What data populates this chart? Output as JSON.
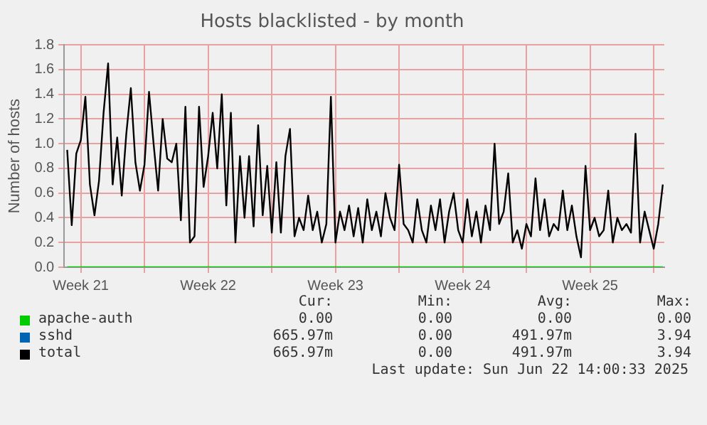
{
  "chart_data": {
    "type": "line",
    "title": "Hosts blacklisted - by month",
    "ylabel": "Number of hosts",
    "x": [
      "2025-05-20T18:00",
      "2025-05-21T00:00",
      "2025-05-21T06:00",
      "2025-05-21T12:00",
      "2025-05-21T18:00",
      "2025-05-22T00:00",
      "2025-05-22T06:00",
      "2025-05-22T12:00",
      "2025-05-22T18:00",
      "2025-05-23T00:00",
      "2025-05-23T06:00",
      "2025-05-23T12:00",
      "2025-05-23T18:00",
      "2025-05-24T00:00",
      "2025-05-24T06:00",
      "2025-05-24T12:00",
      "2025-05-24T18:00",
      "2025-05-25T00:00",
      "2025-05-25T06:00",
      "2025-05-25T12:00",
      "2025-05-25T18:00",
      "2025-05-26T00:00",
      "2025-05-26T06:00",
      "2025-05-26T12:00",
      "2025-05-26T18:00",
      "2025-05-27T00:00",
      "2025-05-27T06:00",
      "2025-05-27T12:00",
      "2025-05-27T18:00",
      "2025-05-28T00:00",
      "2025-05-28T06:00",
      "2025-05-28T12:00",
      "2025-05-28T18:00",
      "2025-05-29T00:00",
      "2025-05-29T06:00",
      "2025-05-29T12:00",
      "2025-05-29T18:00",
      "2025-05-30T00:00",
      "2025-05-30T06:00",
      "2025-05-30T12:00",
      "2025-05-30T18:00",
      "2025-05-31T00:00",
      "2025-05-31T06:00",
      "2025-05-31T12:00",
      "2025-05-31T18:00",
      "2025-06-01T00:00",
      "2025-06-01T06:00",
      "2025-06-01T12:00",
      "2025-06-01T18:00",
      "2025-06-02T00:00",
      "2025-06-02T06:00",
      "2025-06-02T12:00",
      "2025-06-02T18:00",
      "2025-06-03T00:00",
      "2025-06-03T06:00",
      "2025-06-03T12:00",
      "2025-06-03T18:00",
      "2025-06-04T00:00",
      "2025-06-04T06:00",
      "2025-06-04T12:00",
      "2025-06-04T18:00",
      "2025-06-05T00:00",
      "2025-06-05T06:00",
      "2025-06-05T12:00",
      "2025-06-05T18:00",
      "2025-06-06T00:00",
      "2025-06-06T06:00",
      "2025-06-06T12:00",
      "2025-06-06T18:00",
      "2025-06-07T00:00",
      "2025-06-07T06:00",
      "2025-06-07T12:00",
      "2025-06-07T18:00",
      "2025-06-08T00:00",
      "2025-06-08T06:00",
      "2025-06-08T12:00",
      "2025-06-08T18:00",
      "2025-06-09T00:00",
      "2025-06-09T06:00",
      "2025-06-09T12:00",
      "2025-06-09T18:00",
      "2025-06-10T00:00",
      "2025-06-10T06:00",
      "2025-06-10T12:00",
      "2025-06-10T18:00",
      "2025-06-11T00:00",
      "2025-06-11T06:00",
      "2025-06-11T12:00",
      "2025-06-11T18:00",
      "2025-06-12T00:00",
      "2025-06-12T06:00",
      "2025-06-12T12:00",
      "2025-06-12T18:00",
      "2025-06-13T00:00",
      "2025-06-13T06:00",
      "2025-06-13T12:00",
      "2025-06-13T18:00",
      "2025-06-14T00:00",
      "2025-06-14T06:00",
      "2025-06-14T12:00",
      "2025-06-14T18:00",
      "2025-06-15T00:00",
      "2025-06-15T06:00",
      "2025-06-15T12:00",
      "2025-06-15T18:00",
      "2025-06-16T00:00",
      "2025-06-16T06:00",
      "2025-06-16T12:00",
      "2025-06-16T18:00",
      "2025-06-17T00:00",
      "2025-06-17T06:00",
      "2025-06-17T12:00",
      "2025-06-17T18:00",
      "2025-06-18T00:00",
      "2025-06-18T06:00",
      "2025-06-18T12:00",
      "2025-06-18T18:00",
      "2025-06-19T00:00",
      "2025-06-19T06:00",
      "2025-06-19T12:00",
      "2025-06-19T18:00",
      "2025-06-20T00:00",
      "2025-06-20T06:00",
      "2025-06-20T12:00",
      "2025-06-20T18:00",
      "2025-06-21T00:00",
      "2025-06-21T06:00",
      "2025-06-21T12:00",
      "2025-06-21T18:00",
      "2025-06-22T00:00",
      "2025-06-22T06:00",
      "2025-06-22T12:00"
    ],
    "series": [
      {
        "name": "apache-auth",
        "color": "#00cc00",
        "values": [
          0,
          0,
          0,
          0,
          0,
          0,
          0,
          0,
          0,
          0,
          0,
          0,
          0,
          0,
          0,
          0,
          0,
          0,
          0,
          0,
          0,
          0,
          0,
          0,
          0,
          0,
          0,
          0,
          0,
          0,
          0,
          0,
          0,
          0,
          0,
          0,
          0,
          0,
          0,
          0,
          0,
          0,
          0,
          0,
          0,
          0,
          0,
          0,
          0,
          0,
          0,
          0,
          0,
          0,
          0,
          0,
          0,
          0,
          0,
          0,
          0,
          0,
          0,
          0,
          0,
          0,
          0,
          0,
          0,
          0,
          0,
          0,
          0,
          0,
          0,
          0,
          0,
          0,
          0,
          0,
          0,
          0,
          0,
          0,
          0,
          0,
          0,
          0,
          0,
          0,
          0,
          0,
          0,
          0,
          0,
          0,
          0,
          0,
          0,
          0,
          0,
          0,
          0,
          0,
          0,
          0,
          0,
          0,
          0,
          0,
          0,
          0,
          0,
          0,
          0,
          0,
          0,
          0,
          0,
          0,
          0,
          0,
          0,
          0,
          0,
          0,
          0,
          0,
          0,
          0,
          0,
          0
        ]
      },
      {
        "name": "sshd",
        "color": "#0066b3",
        "values": [
          null,
          null,
          null,
          null,
          null,
          null,
          null,
          null,
          null,
          null,
          null,
          null,
          null,
          null,
          null,
          null,
          null,
          null,
          null,
          null,
          null,
          null,
          null,
          null,
          null,
          null,
          null,
          null,
          null,
          null,
          null,
          null,
          null,
          null,
          null,
          null,
          null,
          null,
          null,
          null,
          null,
          null,
          null,
          null,
          null,
          null,
          null,
          null,
          null,
          null,
          null,
          null,
          null,
          null,
          null,
          null,
          null,
          null,
          null,
          null,
          null,
          null,
          null,
          null,
          null,
          null,
          null,
          null,
          null,
          null,
          null,
          null,
          null,
          null,
          null,
          null,
          null,
          null,
          null,
          null,
          null,
          null,
          null,
          null,
          null,
          null,
          null,
          null,
          null,
          null,
          null,
          null,
          null,
          null,
          null,
          null,
          null,
          null,
          null,
          null,
          null,
          null,
          null,
          null,
          null,
          null,
          null,
          null,
          null,
          null,
          null,
          null,
          null,
          null,
          null,
          null,
          null,
          null,
          null,
          null,
          null,
          null,
          null,
          null,
          null,
          null,
          null,
          null,
          null,
          null,
          null,
          null
        ]
      },
      {
        "name": "total",
        "color": "#000000",
        "values": [
          0.95,
          0.34,
          0.92,
          1.03,
          1.38,
          0.67,
          0.42,
          0.7,
          1.25,
          1.65,
          0.67,
          1.05,
          0.58,
          1.08,
          1.45,
          0.85,
          0.62,
          0.83,
          1.42,
          1.0,
          0.62,
          1.2,
          0.88,
          0.85,
          1.0,
          0.38,
          1.3,
          0.2,
          0.25,
          1.3,
          0.65,
          0.9,
          1.25,
          0.8,
          1.4,
          0.5,
          1.25,
          0.2,
          0.9,
          0.4,
          0.9,
          0.33,
          1.15,
          0.42,
          0.82,
          0.28,
          0.85,
          0.28,
          0.9,
          1.12,
          0.25,
          0.4,
          0.3,
          0.58,
          0.3,
          0.45,
          0.2,
          0.35,
          1.38,
          0.2,
          0.45,
          0.3,
          0.5,
          0.25,
          0.48,
          0.2,
          0.55,
          0.3,
          0.45,
          0.25,
          0.6,
          0.4,
          0.3,
          0.83,
          0.35,
          0.3,
          0.2,
          0.55,
          0.3,
          0.2,
          0.5,
          0.3,
          0.55,
          0.2,
          0.45,
          0.6,
          0.3,
          0.2,
          0.55,
          0.25,
          0.45,
          0.2,
          0.5,
          0.3,
          1.0,
          0.35,
          0.45,
          0.76,
          0.2,
          0.3,
          0.15,
          0.35,
          0.25,
          0.72,
          0.3,
          0.55,
          0.25,
          0.35,
          0.3,
          0.62,
          0.3,
          0.5,
          0.25,
          0.08,
          0.82,
          0.3,
          0.4,
          0.25,
          0.3,
          0.62,
          0.2,
          0.4,
          0.3,
          0.35,
          0.28,
          1.08,
          0.2,
          0.45,
          0.3,
          0.15,
          0.35,
          0.67
        ]
      }
    ],
    "xlim": [
      "2025-05-20T14:00",
      "2025-06-22T14:00"
    ],
    "xticks": [
      {
        "value": "2025-05-21T12:00",
        "label": "Week 21"
      },
      {
        "value": "2025-05-25T00:00",
        "label": null
      },
      {
        "value": "2025-05-28T12:00",
        "label": "Week 22"
      },
      {
        "value": "2025-06-01T00:00",
        "label": null
      },
      {
        "value": "2025-06-04T12:00",
        "label": "Week 23"
      },
      {
        "value": "2025-06-08T00:00",
        "label": null
      },
      {
        "value": "2025-06-11T12:00",
        "label": "Week 24"
      },
      {
        "value": "2025-06-15T00:00",
        "label": null
      },
      {
        "value": "2025-06-18T12:00",
        "label": "Week 25"
      },
      {
        "value": "2025-06-22T00:00",
        "label": null
      }
    ],
    "ylim": [
      0,
      1.8
    ],
    "yticks": [
      {
        "value": 0,
        "label": "0.0"
      },
      {
        "value": 0.2,
        "label": "0.2"
      },
      {
        "value": 0.4,
        "label": "0.4"
      },
      {
        "value": 0.6,
        "label": "0.6"
      },
      {
        "value": 0.8,
        "label": "0.8"
      },
      {
        "value": 1,
        "label": "1.0"
      },
      {
        "value": 1.2,
        "label": "1.2"
      },
      {
        "value": 1.4,
        "label": "1.4"
      },
      {
        "value": 1.6,
        "label": "1.6"
      },
      {
        "value": 1.8,
        "label": "1.8"
      }
    ],
    "grid": true,
    "legend": "bottom",
    "marker": "none",
    "line_style": "solid",
    "annotations": [
      "Cur:",
      "Min:",
      "Avg:",
      "Max:",
      "0.00",
      "0.00",
      "0.00",
      "0.00",
      "665.97m",
      "0.00",
      "491.97m",
      "3.94",
      "665.97m",
      "0.00",
      "491.97m",
      "3.94",
      "Last update: Sun Jun 22 14:00:33 2025"
    ]
  }
}
